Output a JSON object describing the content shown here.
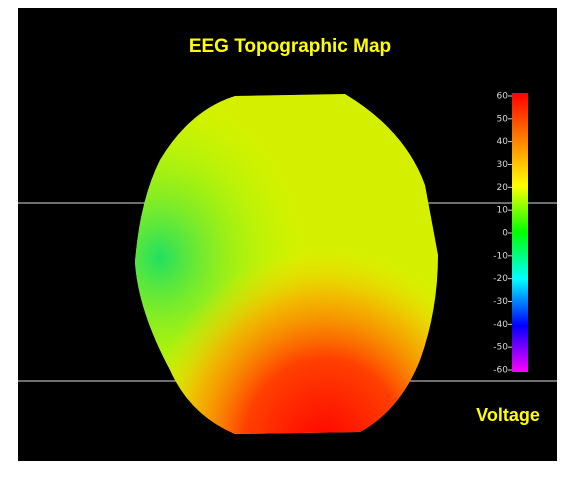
{
  "chart_data": {
    "type": "topographic_map",
    "title": "EEG Topographic Map",
    "colorbar_label": "Voltage",
    "clim": [
      -60,
      60
    ],
    "cticks": [
      60,
      50,
      40,
      30,
      20,
      10,
      0,
      -10,
      -20,
      -30,
      -40,
      -50,
      -60
    ],
    "colormap": [
      "#ff0000",
      "#ff8000",
      "#ffff00",
      "#00ff00",
      "#00ffff",
      "#0000ff",
      "#ff00ff"
    ]
  }
}
